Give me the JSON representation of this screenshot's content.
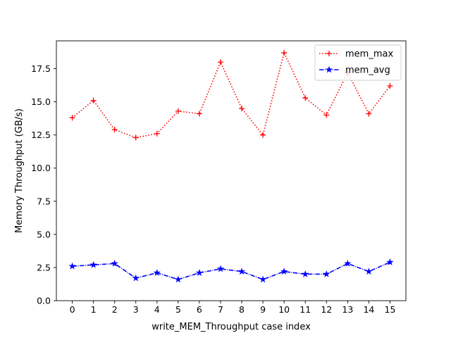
{
  "chart_data": {
    "type": "line",
    "title": "",
    "xlabel": "write_MEM_Throughput case index",
    "ylabel": "Memory Throughput (GB/s)",
    "x": [
      0,
      1,
      2,
      3,
      4,
      5,
      6,
      7,
      8,
      9,
      10,
      11,
      12,
      13,
      14,
      15
    ],
    "x_ticks": [
      "0",
      "1",
      "2",
      "3",
      "4",
      "5",
      "6",
      "7",
      "8",
      "9",
      "10",
      "11",
      "12",
      "13",
      "14",
      "15"
    ],
    "xlim": [
      -0.75,
      15.75
    ],
    "ylim": [
      0.0,
      19.6
    ],
    "y_ticks": [
      "0.0",
      "2.5",
      "5.0",
      "7.5",
      "10.0",
      "12.5",
      "15.0",
      "17.5"
    ],
    "grid": false,
    "legend_position": "top-right",
    "series": [
      {
        "name": "mem_max",
        "color": "#ff0000",
        "line_style": "dotted",
        "marker": "plus",
        "values": [
          13.8,
          15.1,
          12.9,
          12.3,
          12.6,
          14.3,
          14.1,
          18.0,
          14.5,
          12.5,
          18.7,
          15.3,
          14.0,
          17.2,
          14.1,
          16.2
        ]
      },
      {
        "name": "mem_avg",
        "color": "#0000ff",
        "line_style": "dashdot",
        "marker": "star",
        "values": [
          2.6,
          2.7,
          2.8,
          1.7,
          2.1,
          1.6,
          2.1,
          2.4,
          2.2,
          1.6,
          2.2,
          2.0,
          2.0,
          2.8,
          2.2,
          2.9
        ]
      }
    ]
  }
}
